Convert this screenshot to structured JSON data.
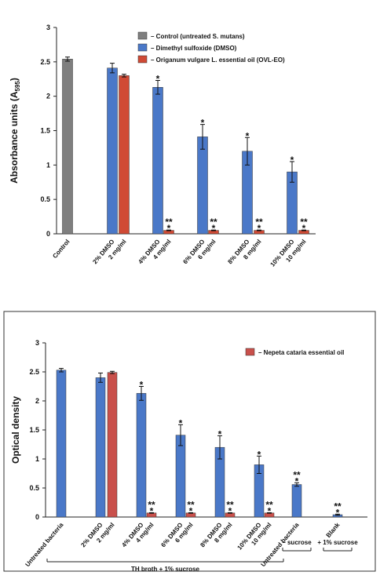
{
  "chart_data": [
    {
      "type": "bar",
      "y_label": "Absorbance units (A",
      "y_label_sub": "595",
      "y_label_end": ")",
      "categories": [
        "Control",
        "2% DMSO",
        "2 mg/ml",
        "4% DMSO",
        "4 mg/ml",
        "6% DMSO",
        "6 mg/ml",
        "8% DMSO",
        "8 mg/ml",
        "10% DMSO",
        "10 mg/ml"
      ],
      "series": [
        {
          "name": "– Control (untreated S. mutans)",
          "color": "#7f7f7f",
          "values": [
            2.54,
            null,
            null,
            null,
            null,
            null,
            null,
            null,
            null,
            null,
            null
          ],
          "errors": [
            0.03,
            null,
            null,
            null,
            null,
            null,
            null,
            null,
            null,
            null,
            null
          ]
        },
        {
          "name": "– Dimethyl sulfoxide (DMSO)",
          "color": "#4a78c8",
          "values": [
            null,
            2.41,
            null,
            2.13,
            null,
            1.41,
            null,
            1.2,
            null,
            0.9,
            null
          ],
          "errors": [
            null,
            0.07,
            null,
            0.1,
            null,
            0.18,
            null,
            0.2,
            null,
            0.15,
            null
          ]
        },
        {
          "name": "– Origanum vulgare L. essential oil (OVL-EO)",
          "color": "#d04a35",
          "values": [
            null,
            null,
            2.3,
            null,
            0.05,
            null,
            0.05,
            null,
            0.05,
            null,
            0.05
          ],
          "errors": [
            null,
            null,
            0.02,
            null,
            0.005,
            null,
            0.005,
            null,
            0.005,
            null,
            0.005
          ]
        }
      ],
      "significance": [
        null,
        null,
        null,
        [
          "*"
        ],
        [
          "**",
          "*"
        ],
        [
          "*"
        ],
        [
          "**",
          "*"
        ],
        [
          "*"
        ],
        [
          "**",
          "*"
        ],
        [
          "*"
        ],
        [
          "**",
          "*"
        ]
      ],
      "ylim": [
        0,
        3
      ],
      "yticks": [
        0,
        0.5,
        1,
        1.5,
        2,
        2.5,
        3
      ],
      "grid": false
    },
    {
      "type": "bar",
      "y_label": "Optical density",
      "categories": [
        "Untreated bacteria",
        "2% DMSO",
        "2 mg/ml",
        "4% DMSO",
        "4 mg/ml",
        "6% DMSO",
        "6 mg/ml",
        "8% DMSO",
        "8 mg/ml",
        "10% DMSO",
        "10 mg/ml",
        "Untreated bacteria",
        "Blank"
      ],
      "series": [
        {
          "color": "#4a78c8",
          "values": [
            2.53,
            2.4,
            null,
            2.13,
            null,
            1.41,
            null,
            1.2,
            null,
            0.9,
            null,
            0.56,
            0.04
          ],
          "errors": [
            0.03,
            0.08,
            null,
            0.12,
            null,
            0.18,
            null,
            0.2,
            null,
            0.15,
            null,
            0.03,
            0.01
          ]
        },
        {
          "name": "– Nepeta cataria essential oil",
          "color": "#c9504b",
          "values": [
            null,
            null,
            2.49,
            null,
            0.07,
            null,
            0.07,
            null,
            0.07,
            null,
            0.07,
            null,
            null
          ],
          "errors": [
            null,
            null,
            0.02,
            null,
            0.005,
            null,
            0.005,
            null,
            0.005,
            null,
            0.005,
            null,
            null
          ]
        }
      ],
      "significance": [
        null,
        null,
        null,
        [
          "*"
        ],
        [
          "**",
          "*"
        ],
        [
          "*"
        ],
        [
          "**",
          "*"
        ],
        [
          "*"
        ],
        [
          "**",
          "*"
        ],
        [
          "*"
        ],
        [
          "**",
          "*"
        ],
        [
          "**",
          "*"
        ],
        [
          "**",
          "*"
        ]
      ],
      "group_labels": [
        "TH broth + 1% sucrose",
        "– sucrose",
        "+ 1% sucrose"
      ],
      "ylim": [
        0,
        3
      ],
      "yticks": [
        0,
        0.5,
        1,
        1.5,
        2,
        2.5,
        3
      ],
      "grid": false
    }
  ]
}
